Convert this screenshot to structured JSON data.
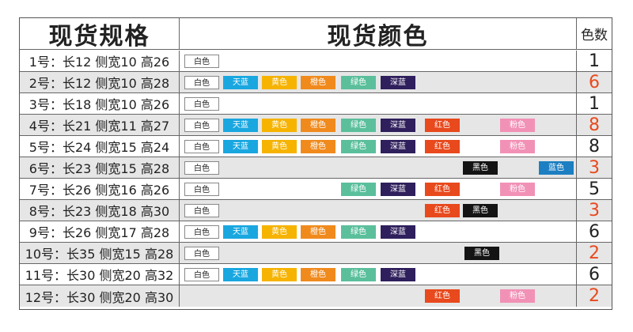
{
  "header": {
    "spec_title": "现货规格",
    "colors_title": "现货颜色",
    "count_title": "色数"
  },
  "colors": {
    "white": {
      "label": "白色",
      "bg": "#ffffff",
      "fg": "#222222"
    },
    "skyblue": {
      "label": "天蓝",
      "bg": "#1aa7e0",
      "fg": "#ffffff"
    },
    "yellow": {
      "label": "黄色",
      "bg": "#f6b300",
      "fg": "#ffffff"
    },
    "orange": {
      "label": "橙色",
      "bg": "#f08a1d",
      "fg": "#ffffff"
    },
    "green": {
      "label": "绿色",
      "bg": "#5bbf9c",
      "fg": "#ffffff"
    },
    "deepblue": {
      "label": "深蓝",
      "bg": "#2f1f5c",
      "fg": "#ffffff"
    },
    "red": {
      "label": "红色",
      "bg": "#e8491d",
      "fg": "#ffffff"
    },
    "black": {
      "label": "黑色",
      "bg": "#141414",
      "fg": "#ffffff"
    },
    "pink": {
      "label": "粉色",
      "bg": "#f291b6",
      "fg": "#ffffff"
    },
    "blue": {
      "label": "蓝色",
      "bg": "#1d7fc1",
      "fg": "#ffffff"
    }
  },
  "rows": [
    {
      "spec": "1号：长12 侧宽10 高26",
      "colors": [
        "white"
      ],
      "count": "1",
      "count_red": false
    },
    {
      "spec": "2号：长12 侧宽10 高28",
      "colors": [
        "white",
        "skyblue",
        "yellow",
        "orange",
        "green",
        "deepblue"
      ],
      "count": "6",
      "count_red": true
    },
    {
      "spec": "3号：长18 侧宽10 高26",
      "colors": [
        "white"
      ],
      "count": "1",
      "count_red": false
    },
    {
      "spec": "4号：长21 侧宽11 高27",
      "colors": [
        "white",
        "skyblue",
        "yellow",
        "orange",
        "green",
        "deepblue",
        "red",
        "pink"
      ],
      "count": "8",
      "count_red": true
    },
    {
      "spec": "5号：长24 侧宽15 高24",
      "colors": [
        "white",
        "skyblue",
        "yellow",
        "orange",
        "green",
        "deepblue",
        "red",
        "pink"
      ],
      "count": "8",
      "count_red": false
    },
    {
      "spec": "6号：长23 侧宽15 高28",
      "colors": [
        "white",
        "black",
        "blue"
      ],
      "count": "3",
      "count_red": true
    },
    {
      "spec": "7号：长26 侧宽16 高26",
      "colors": [
        "white",
        "green",
        "deepblue",
        "red",
        "pink"
      ],
      "count": "5",
      "count_red": false
    },
    {
      "spec": "8号：长23 侧宽18 高30",
      "colors": [
        "white",
        "red",
        "black"
      ],
      "count": "3",
      "count_red": true
    },
    {
      "spec": "9号：长26 侧宽17 高28",
      "colors": [
        "white",
        "skyblue",
        "yellow",
        "orange",
        "green",
        "deepblue"
      ],
      "count": "6",
      "count_red": false
    },
    {
      "spec": "10号：长35 侧宽15 高28",
      "colors": [
        "white",
        "black"
      ],
      "count": "2",
      "count_red": true
    },
    {
      "spec": "11号：长30 侧宽20 高32",
      "colors": [
        "white",
        "skyblue",
        "yellow",
        "orange",
        "green",
        "deepblue"
      ],
      "count": "6",
      "count_red": false
    },
    {
      "spec": "12号：长30 侧宽20 高30",
      "colors": [
        "red",
        "pink"
      ],
      "count": "2",
      "count_red": true
    }
  ]
}
